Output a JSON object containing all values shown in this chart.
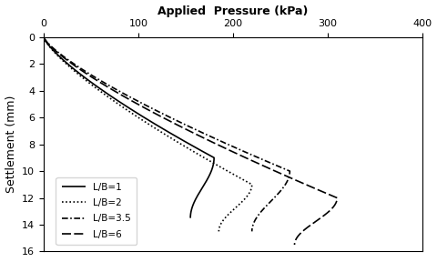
{
  "title": "Applied  Pressure (kPa)",
  "ylabel": "Settlement (mm)",
  "xlim": [
    0,
    400
  ],
  "ylim": [
    16,
    0
  ],
  "xticks": [
    0,
    100,
    200,
    300,
    400
  ],
  "yticks": [
    0,
    2,
    4,
    6,
    8,
    10,
    12,
    14,
    16
  ],
  "curves": [
    {
      "label": "L/B=1",
      "linestyle": "solid",
      "color": "#000000",
      "p_ult": 180,
      "s_ult": 9,
      "s_end": 13.5,
      "p_end": 155,
      "linewidth": 1.2
    },
    {
      "label": "L/B=2",
      "linestyle": "dotted",
      "color": "#000000",
      "p_ult": 220,
      "s_ult": 11,
      "s_end": 14.5,
      "p_end": 185,
      "linewidth": 1.2
    },
    {
      "label": "L/B=3.5",
      "linestyle": "dashdot",
      "color": "#000000",
      "p_ult": 260,
      "s_ult": 10,
      "s_end": 14.5,
      "p_end": 220,
      "linewidth": 1.2
    },
    {
      "label": "L/B=6",
      "linestyle": "dashed",
      "color": "#000000",
      "p_ult": 310,
      "s_ult": 12,
      "s_end": 15.5,
      "p_end": 265,
      "linewidth": 1.2
    }
  ],
  "legend_loc": "lower left",
  "figsize": [
    4.8,
    2.88
  ],
  "dpi": 100
}
